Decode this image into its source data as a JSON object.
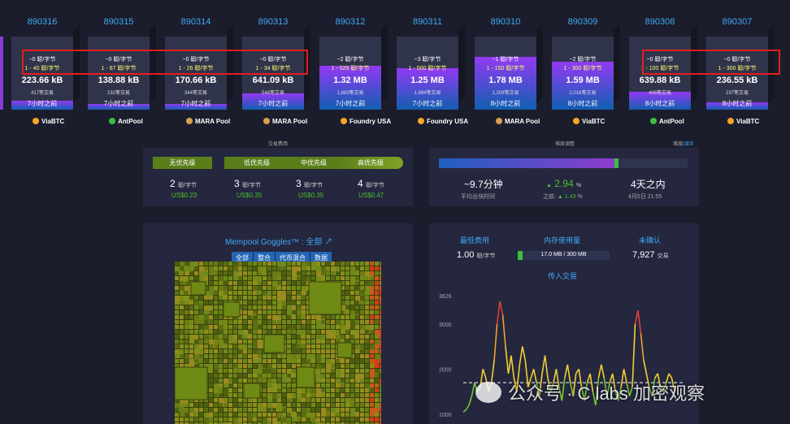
{
  "blocks": [
    {
      "height": "890316",
      "fee": "~0 聪/字节",
      "range": "1 - 40 聪/字节",
      "size": "223.66 kB",
      "txs": "417笔交易",
      "ago": "7小时之前",
      "pool": "ViaBTC",
      "fill": 0.12
    },
    {
      "height": "890315",
      "fee": "~0 聪/字节",
      "range": "1 - 87 聪/字节",
      "size": "138.88 kB",
      "txs": "232笔交易",
      "ago": "7小时之前",
      "pool": "AntPool",
      "fill": 0.08
    },
    {
      "height": "890314",
      "fee": "~0 聪/字节",
      "range": "1 - 26 聪/字节",
      "size": "170.66 kB",
      "txs": "344笔交易",
      "ago": "7小时之前",
      "pool": "MARA Pool",
      "fill": 0.08
    },
    {
      "height": "890313",
      "fee": "~0 聪/字节",
      "range": "1 - 34 聪/字节",
      "size": "641.09 kB",
      "txs": "548笔交易",
      "ago": "7小时之前",
      "pool": "MARA Pool",
      "fill": 0.22
    },
    {
      "height": "890312",
      "fee": "~2 聪/字节",
      "range": "1 - 529 聪/字节",
      "size": "1.32 MB",
      "txs": "1,883笔交易",
      "ago": "7小时之前",
      "pool": "Foundry USA",
      "fill": 0.6
    },
    {
      "height": "890311",
      "fee": "~3 聪/字节",
      "range": "1 - 500 聪/字节",
      "size": "1.25 MB",
      "txs": "1,994笔交易",
      "ago": "7小时之前",
      "pool": "Foundry USA",
      "fill": 0.57
    },
    {
      "height": "890310",
      "fee": "~1 聪/字节",
      "range": "1 - 150 聪/字节",
      "size": "1.78 MB",
      "txs": "1,208笔交易",
      "ago": "8小时之前",
      "pool": "MARA Pool",
      "fill": 0.72
    },
    {
      "height": "890309",
      "fee": "~2 聪/字节",
      "range": "1 - 300 聪/字节",
      "size": "1.59 MB",
      "txs": "2,016笔交易",
      "ago": "8小时之前",
      "pool": "ViaBTC",
      "fill": 0.66
    },
    {
      "height": "890308",
      "fee": "~0 聪/字节",
      "range": "1 - 100 聪/字节",
      "size": "639.88 kB",
      "txs": "408笔交易",
      "ago": "8小时之前",
      "pool": "AntPool",
      "fill": 0.24
    },
    {
      "height": "890307",
      "fee": "~0 聪/字节",
      "range": "1 - 300 聪/字节",
      "size": "236.55 kB",
      "txs": "237笔交易",
      "ago": "8小时之前",
      "pool": "ViaBTC",
      "fill": 0.1
    }
  ],
  "fees": {
    "title": "交易费用",
    "levels": [
      "无优先级",
      "低优先级",
      "中优先级",
      "高优先级"
    ],
    "values": [
      "2",
      "3",
      "3",
      "4"
    ],
    "unit": "聪/字节",
    "usd": [
      "US$0.23",
      "US$0.35",
      "US$0.35",
      "US$0.47"
    ]
  },
  "difficulty": {
    "title": "难度调整",
    "halving_label": "难度",
    "halving_link": "减半",
    "progress": 0.72,
    "block_time": "~9.7分钟",
    "block_time_label": "平均出块时间",
    "change": "2.94",
    "change_unit": "%",
    "prev_label": "之前:",
    "prev_value": "1.43",
    "prev_unit": "%",
    "eta": "4天之内",
    "eta_date": "4月5日 21:55"
  },
  "goggles": {
    "title": "Mempool Goggles™ : 全部",
    "tabs": [
      "全部",
      "整合",
      "代币混合",
      "数据"
    ]
  },
  "stats": {
    "min_fee_label": "最低费用",
    "min_fee": "1.00",
    "min_fee_unit": "聪/字节",
    "mem_label": "内存使用量",
    "mem_value": "17.0 MB / 300 MB",
    "mem_fraction": 0.057,
    "unconf_label": "未确认",
    "unconf_value": "7,927",
    "unconf_unit": "交易",
    "incoming_label": "传入交易"
  },
  "chart_data": {
    "type": "line",
    "title": "传入交易",
    "yticks": [
      "3626",
      "3000",
      "2000",
      "1000"
    ],
    "ylim": [
      1000,
      3626
    ],
    "values": [
      1050,
      1100,
      1200,
      1400,
      1700,
      1500,
      1600,
      2000,
      1800,
      1500,
      1700,
      2200,
      3000,
      3500,
      3200,
      2500,
      1900,
      2300,
      1800,
      1500,
      2100,
      2500,
      2200,
      1600,
      1800,
      2000,
      1700,
      1400,
      1900,
      2300,
      1800,
      1500,
      1700,
      2000,
      1600,
      1300,
      1800,
      2100,
      1700,
      1400,
      1900,
      2000,
      1600,
      1300,
      1700,
      1900,
      1500,
      1200,
      1800,
      2100,
      1800,
      1400,
      1700,
      1900,
      1500,
      1300,
      1600,
      2000,
      1700,
      1400,
      1600,
      3000,
      3300,
      2800,
      2200,
      1900,
      1600,
      1400,
      1800,
      1900,
      1600,
      1500,
      1700,
      1900,
      1800,
      1500
    ],
    "threshold": 1700
  },
  "watermark": "公众号 · C labs 加密观察"
}
